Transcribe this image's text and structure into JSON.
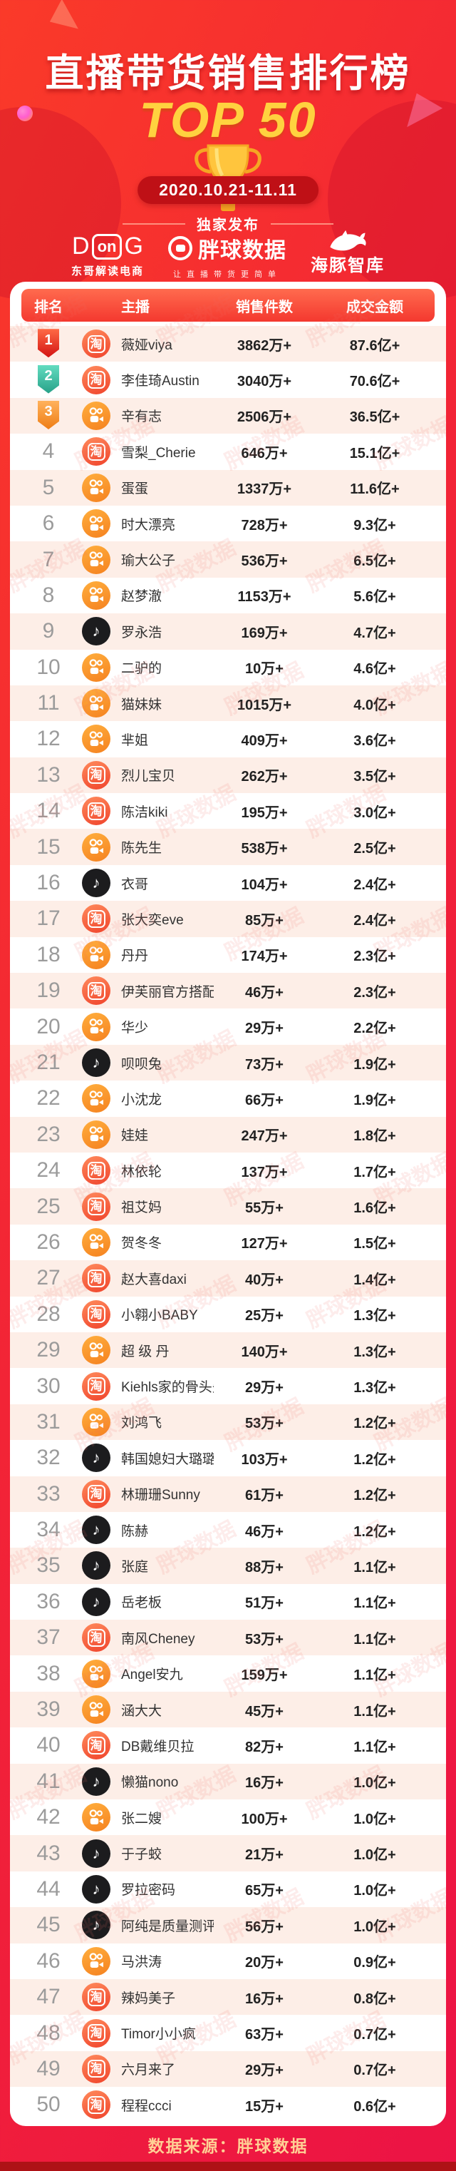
{
  "poster": {
    "title": "直播带货销售排行榜",
    "top_label": "TOP 50",
    "date_range": "2020.10.21-11.11",
    "exclusive": "独家发布",
    "logos": {
      "dong": {
        "d": "D",
        "on": "on",
        "g": "G",
        "subtitle": "东哥解读电商"
      },
      "pangqiu": {
        "name": "胖球数据",
        "subtitle": "让直播带货更简单"
      },
      "dolphin": {
        "name": "海豚智库"
      }
    },
    "source": "数据来源：胖球数据",
    "watermark": "胖球数据"
  },
  "colors": {
    "background_red": "#f22436",
    "dark_red_bar": "#ae1216",
    "gold": "#ffd23f",
    "date_pill": "#bf1016",
    "row_stripe": "#fdeee7",
    "taobao": "#f0442c",
    "kuaishou": "#f58220",
    "douyin": "#1c1c1e",
    "footer_text": "#ffd095"
  },
  "chart_data": {
    "type": "table",
    "title": "直播带货销售排行榜 TOP 50",
    "subtitle": "2020.10.21-11.11",
    "columns": [
      "排名",
      "主播",
      "销售件数",
      "成交金额"
    ],
    "rows": [
      {
        "rank": 1,
        "platform": "taobao",
        "name": "薇娅viya",
        "sales": "3862万+",
        "amount": "87.6亿+"
      },
      {
        "rank": 2,
        "platform": "taobao",
        "name": "李佳琦Austin",
        "sales": "3040万+",
        "amount": "70.6亿+"
      },
      {
        "rank": 3,
        "platform": "kuaishou",
        "name": "辛有志",
        "sales": "2506万+",
        "amount": "36.5亿+"
      },
      {
        "rank": 4,
        "platform": "taobao",
        "name": "雪梨_Cherie",
        "sales": "646万+",
        "amount": "15.1亿+"
      },
      {
        "rank": 5,
        "platform": "kuaishou",
        "name": "蛋蛋",
        "sales": "1337万+",
        "amount": "11.6亿+"
      },
      {
        "rank": 6,
        "platform": "kuaishou",
        "name": "时大漂亮",
        "sales": "728万+",
        "amount": "9.3亿+"
      },
      {
        "rank": 7,
        "platform": "kuaishou",
        "name": "瑜大公子",
        "sales": "536万+",
        "amount": "6.5亿+"
      },
      {
        "rank": 8,
        "platform": "kuaishou",
        "name": "赵梦澈",
        "sales": "1153万+",
        "amount": "5.6亿+"
      },
      {
        "rank": 9,
        "platform": "douyin",
        "name": "罗永浩",
        "sales": "169万+",
        "amount": "4.7亿+"
      },
      {
        "rank": 10,
        "platform": "kuaishou",
        "name": "二驴的",
        "sales": "10万+",
        "amount": "4.6亿+"
      },
      {
        "rank": 11,
        "platform": "kuaishou",
        "name": "猫妹妹",
        "sales": "1015万+",
        "amount": "4.0亿+"
      },
      {
        "rank": 12,
        "platform": "kuaishou",
        "name": "芈姐",
        "sales": "409万+",
        "amount": "3.6亿+"
      },
      {
        "rank": 13,
        "platform": "taobao",
        "name": "烈儿宝贝",
        "sales": "262万+",
        "amount": "3.5亿+"
      },
      {
        "rank": 14,
        "platform": "taobao",
        "name": "陈洁kiki",
        "sales": "195万+",
        "amount": "3.0亿+"
      },
      {
        "rank": 15,
        "platform": "kuaishou",
        "name": "陈先生",
        "sales": "538万+",
        "amount": "2.5亿+"
      },
      {
        "rank": 16,
        "platform": "douyin",
        "name": "衣哥",
        "sales": "104万+",
        "amount": "2.4亿+"
      },
      {
        "rank": 17,
        "platform": "taobao",
        "name": "张大奕eve",
        "sales": "85万+",
        "amount": "2.4亿+"
      },
      {
        "rank": 18,
        "platform": "kuaishou",
        "name": "丹丹",
        "sales": "174万+",
        "amount": "2.3亿+"
      },
      {
        "rank": 19,
        "platform": "taobao",
        "name": "伊芙丽官方搭配师",
        "sales": "46万+",
        "amount": "2.3亿+"
      },
      {
        "rank": 20,
        "platform": "kuaishou",
        "name": "华少",
        "sales": "29万+",
        "amount": "2.2亿+"
      },
      {
        "rank": 21,
        "platform": "douyin",
        "name": "呗呗兔",
        "sales": "73万+",
        "amount": "1.9亿+"
      },
      {
        "rank": 22,
        "platform": "kuaishou",
        "name": "小沈龙",
        "sales": "66万+",
        "amount": "1.9亿+"
      },
      {
        "rank": 23,
        "platform": "kuaishou",
        "name": "娃娃",
        "sales": "247万+",
        "amount": "1.8亿+"
      },
      {
        "rank": 24,
        "platform": "taobao",
        "name": "林依轮",
        "sales": "137万+",
        "amount": "1.7亿+"
      },
      {
        "rank": 25,
        "platform": "taobao",
        "name": "祖艾妈",
        "sales": "55万+",
        "amount": "1.6亿+"
      },
      {
        "rank": 26,
        "platform": "kuaishou",
        "name": "贺冬冬",
        "sales": "127万+",
        "amount": "1.5亿+"
      },
      {
        "rank": 27,
        "platform": "taobao",
        "name": "赵大喜daxi",
        "sales": "40万+",
        "amount": "1.4亿+"
      },
      {
        "rank": 28,
        "platform": "taobao",
        "name": "小翱小BABY",
        "sales": "25万+",
        "amount": "1.3亿+"
      },
      {
        "rank": 29,
        "platform": "kuaishou",
        "name": "超 级 丹",
        "sales": "140万+",
        "amount": "1.3亿+"
      },
      {
        "rank": 30,
        "platform": "taobao",
        "name": "Kiehls家的骨头先生",
        "sales": "29万+",
        "amount": "1.3亿+"
      },
      {
        "rank": 31,
        "platform": "kuaishou",
        "name": "刘鸿飞",
        "sales": "53万+",
        "amount": "1.2亿+"
      },
      {
        "rank": 32,
        "platform": "douyin",
        "name": "韩国媳妇大璐璐",
        "sales": "103万+",
        "amount": "1.2亿+"
      },
      {
        "rank": 33,
        "platform": "taobao",
        "name": "林珊珊Sunny",
        "sales": "61万+",
        "amount": "1.2亿+"
      },
      {
        "rank": 34,
        "platform": "douyin",
        "name": "陈赫",
        "sales": "46万+",
        "amount": "1.2亿+"
      },
      {
        "rank": 35,
        "platform": "douyin",
        "name": "张庭",
        "sales": "88万+",
        "amount": "1.1亿+"
      },
      {
        "rank": 36,
        "platform": "douyin",
        "name": "岳老板",
        "sales": "51万+",
        "amount": "1.1亿+"
      },
      {
        "rank": 37,
        "platform": "taobao",
        "name": "南风Cheney",
        "sales": "53万+",
        "amount": "1.1亿+"
      },
      {
        "rank": 38,
        "platform": "kuaishou",
        "name": "Angel安九",
        "sales": "159万+",
        "amount": "1.1亿+"
      },
      {
        "rank": 39,
        "platform": "kuaishou",
        "name": "涵大大",
        "sales": "45万+",
        "amount": "1.1亿+"
      },
      {
        "rank": 40,
        "platform": "taobao",
        "name": "DB戴维贝拉",
        "sales": "82万+",
        "amount": "1.1亿+"
      },
      {
        "rank": 41,
        "platform": "douyin",
        "name": "懒猫nono",
        "sales": "16万+",
        "amount": "1.0亿+"
      },
      {
        "rank": 42,
        "platform": "kuaishou",
        "name": "张二嫂",
        "sales": "100万+",
        "amount": "1.0亿+"
      },
      {
        "rank": 43,
        "platform": "douyin",
        "name": "于子蛟",
        "sales": "21万+",
        "amount": "1.0亿+"
      },
      {
        "rank": 44,
        "platform": "douyin",
        "name": "罗拉密码",
        "sales": "65万+",
        "amount": "1.0亿+"
      },
      {
        "rank": 45,
        "platform": "douyin",
        "name": "阿纯是质量测评家",
        "sales": "56万+",
        "amount": "1.0亿+"
      },
      {
        "rank": 46,
        "platform": "kuaishou",
        "name": "马洪涛",
        "sales": "20万+",
        "amount": "0.9亿+"
      },
      {
        "rank": 47,
        "platform": "taobao",
        "name": "辣妈美子",
        "sales": "16万+",
        "amount": "0.8亿+"
      },
      {
        "rank": 48,
        "platform": "taobao",
        "name": "Timor小小疯",
        "sales": "63万+",
        "amount": "0.7亿+"
      },
      {
        "rank": 49,
        "platform": "taobao",
        "name": "六月来了",
        "sales": "29万+",
        "amount": "0.7亿+"
      },
      {
        "rank": 50,
        "platform": "taobao",
        "name": "程程ccci",
        "sales": "15万+",
        "amount": "0.6亿+"
      }
    ]
  }
}
